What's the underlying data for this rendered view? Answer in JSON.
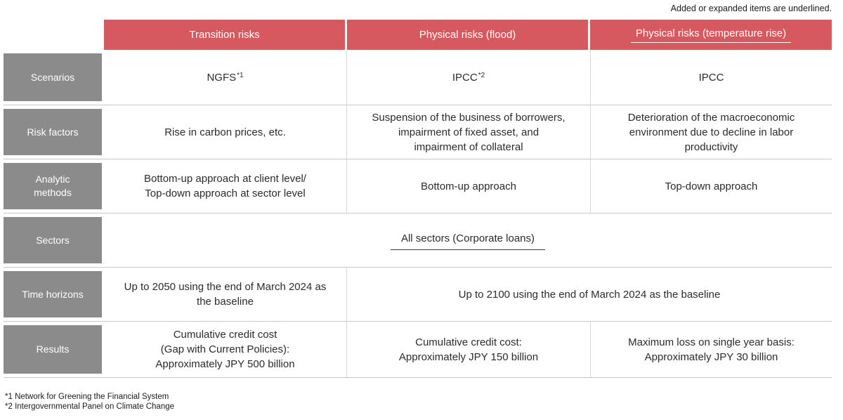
{
  "note": "Added or expanded items are underlined.",
  "colors": {
    "header_red": "#d5595e",
    "row_header_gray": "#8b8b8b",
    "grid_line": "#c9c9c9"
  },
  "table": {
    "columns": [
      {
        "label": "Transition risks",
        "underlined": false
      },
      {
        "label": "Physical risks (flood)",
        "underlined": false
      },
      {
        "label": "Physical risks (temperature rise)",
        "underlined": true
      }
    ],
    "rows": [
      {
        "header": "Scenarios",
        "cells": {
          "transition": {
            "text": "NGFS",
            "sup": "*1"
          },
          "flood": {
            "text": "IPCC",
            "sup": "*2"
          },
          "temperature": {
            "text": "IPCC"
          }
        }
      },
      {
        "header": "Risk factors",
        "cells": {
          "transition": {
            "text": "Rise in carbon prices, etc."
          },
          "flood": {
            "text": "Suspension of the business of borrowers,\nimpairment of fixed asset, and\nimpairment of collateral"
          },
          "temperature": {
            "text": "Deterioration of the macroeconomic\nenvironment due to decline in labor\nproductivity"
          }
        }
      },
      {
        "header": "Analytic\nmethods",
        "cells": {
          "transition": {
            "text": "Bottom-up approach at client level/\nTop-down approach at sector level"
          },
          "flood": {
            "text": "Bottom-up approach"
          },
          "temperature": {
            "text": "Top-down approach"
          }
        }
      },
      {
        "header": "Sectors",
        "cells": {
          "all_columns": {
            "text": "All sectors (Corporate loans)",
            "underlined": true
          }
        }
      },
      {
        "header": "Time horizons",
        "cells": {
          "transition": {
            "text": "Up to 2050 using the end of March 2024 as\nthe baseline"
          },
          "flood_and_temperature": {
            "text": "Up to 2100 using the end of March 2024 as the baseline"
          }
        }
      },
      {
        "header": "Results",
        "cells": {
          "transition": {
            "text": "Cumulative credit cost\n(Gap with Current Policies):\nApproximately JPY 500 billion"
          },
          "flood": {
            "text": "Cumulative credit cost:\nApproximately JPY 150 billion"
          },
          "temperature": {
            "text": "Maximum loss on single year basis:\nApproximately JPY 30 billion"
          }
        }
      }
    ]
  },
  "footnotes": [
    "*1 Network for Greening the Financial System",
    "*2 Intergovernmental Panel on Climate Change"
  ]
}
